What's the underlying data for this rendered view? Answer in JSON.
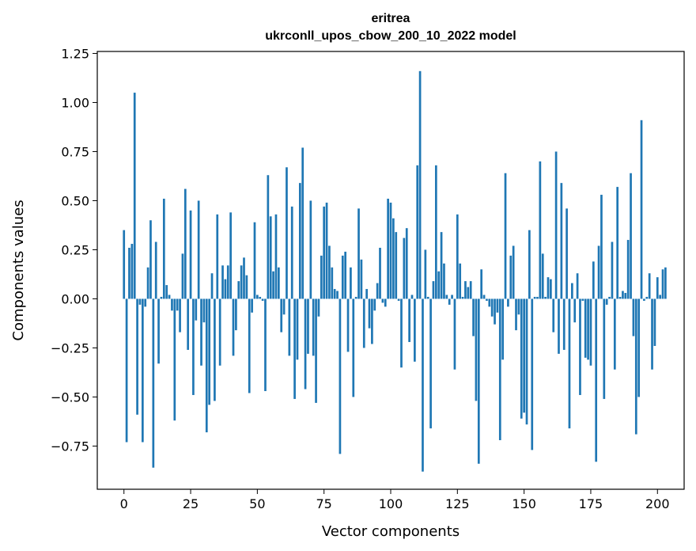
{
  "chart_data": {
    "type": "bar",
    "title": "eritrea",
    "subtitle": "ukrconll_upos_cbow_200_10_2022 model",
    "xlabel": "Vector components",
    "ylabel": "Components values",
    "xlim": [
      -10,
      210
    ],
    "ylim": [
      -0.97,
      1.26
    ],
    "xticks": [
      0,
      25,
      50,
      75,
      100,
      125,
      150,
      175,
      200
    ],
    "yticks": [
      -0.75,
      -0.5,
      -0.25,
      0.0,
      0.25,
      0.5,
      0.75,
      1.0,
      1.25
    ],
    "xtick_labels": [
      "0",
      "25",
      "50",
      "75",
      "100",
      "125",
      "150",
      "175",
      "200"
    ],
    "ytick_labels": [
      "−0.75",
      "−0.50",
      "−0.25",
      "0.00",
      "0.25",
      "0.50",
      "0.75",
      "1.00",
      "1.25"
    ],
    "grid": false,
    "bar_color": "#1f77b4",
    "values": [
      0.35,
      -0.73,
      0.26,
      0.28,
      1.05,
      -0.59,
      -0.03,
      -0.73,
      -0.04,
      0.16,
      0.4,
      -0.86,
      0.29,
      -0.33,
      0.01,
      0.51,
      0.07,
      0.02,
      -0.06,
      -0.62,
      -0.06,
      -0.17,
      0.23,
      0.56,
      -0.26,
      0.45,
      -0.49,
      -0.11,
      0.5,
      -0.34,
      -0.12,
      -0.68,
      -0.54,
      0.13,
      -0.52,
      0.43,
      -0.34,
      0.17,
      0.1,
      0.17,
      0.44,
      -0.29,
      -0.16,
      0.09,
      0.17,
      0.21,
      0.12,
      -0.48,
      -0.07,
      0.39,
      0.02,
      0.01,
      -0.01,
      -0.47,
      0.63,
      0.42,
      0.14,
      0.43,
      0.16,
      -0.17,
      -0.08,
      0.67,
      -0.29,
      0.47,
      -0.51,
      -0.31,
      0.59,
      0.77,
      -0.46,
      -0.28,
      0.5,
      -0.29,
      -0.53,
      -0.09,
      0.22,
      0.47,
      0.49,
      0.27,
      0.16,
      0.05,
      0.04,
      -0.79,
      0.22,
      0.24,
      -0.27,
      0.16,
      -0.5,
      0.01,
      0.46,
      0.2,
      -0.25,
      0.05,
      -0.15,
      -0.23,
      -0.06,
      0.08,
      0.26,
      -0.02,
      -0.04,
      0.51,
      0.49,
      0.41,
      0.34,
      -0.01,
      -0.35,
      0.31,
      0.36,
      -0.22,
      0.02,
      -0.32,
      0.68,
      1.16,
      -0.88,
      0.25,
      0.01,
      -0.66,
      0.09,
      0.68,
      0.14,
      0.34,
      0.18,
      0.02,
      -0.03,
      0.02,
      -0.36,
      0.43,
      0.18,
      0.01,
      0.09,
      0.06,
      0.09,
      -0.19,
      -0.52,
      -0.84,
      0.15,
      0.02,
      -0.01,
      -0.04,
      -0.09,
      -0.13,
      -0.07,
      -0.72,
      -0.31,
      0.64,
      -0.04,
      0.22,
      0.27,
      -0.16,
      -0.08,
      -0.61,
      -0.58,
      -0.64,
      0.35,
      -0.77,
      0.01,
      0.01,
      0.7,
      0.23,
      0.01,
      0.11,
      0.1,
      -0.17,
      0.75,
      -0.28,
      0.59,
      -0.26,
      0.46,
      -0.66,
      0.08,
      -0.12,
      0.13,
      -0.49,
      -0.01,
      -0.3,
      -0.31,
      -0.34,
      0.19,
      -0.83,
      0.27,
      0.53,
      -0.51,
      -0.03,
      0.01,
      0.29,
      -0.36,
      0.57,
      0.01,
      0.04,
      0.03,
      0.3,
      0.64,
      -0.19,
      -0.69,
      -0.5,
      0.91,
      -0.01,
      0.01,
      0.13,
      -0.36,
      -0.24,
      0.11,
      0.02,
      0.15,
      0.16
    ]
  }
}
